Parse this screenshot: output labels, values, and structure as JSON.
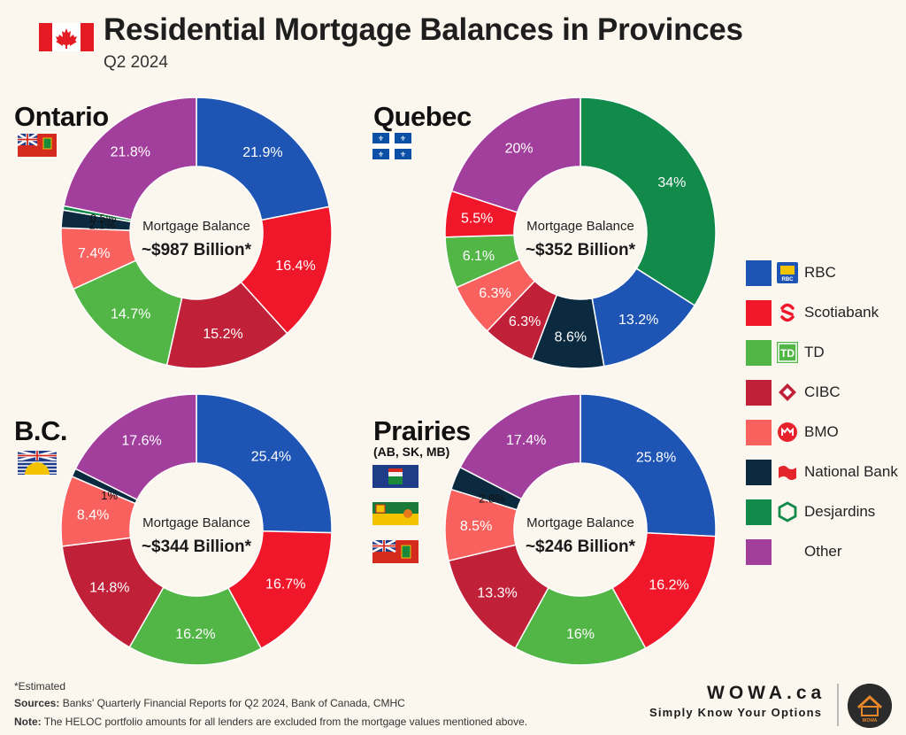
{
  "header": {
    "title": "Residential Mortgage Balances in Provinces",
    "subtitle": "Q2 2024"
  },
  "center_label": "Mortgage Balance",
  "colors": {
    "RBC": "#1e55b4",
    "Scotiabank": "#f0172b",
    "TD": "#52b646",
    "CIBC": "#c12039",
    "BMO": "#f9615e",
    "National Bank": "#0b2a3f",
    "Desjardins": "#118a4a",
    "Other": "#a23f9c"
  },
  "legend": [
    {
      "name": "RBC",
      "icon": "rbc-logo-icon"
    },
    {
      "name": "Scotiabank",
      "icon": "scotiabank-logo-icon"
    },
    {
      "name": "TD",
      "icon": "td-logo-icon"
    },
    {
      "name": "CIBC",
      "icon": "cibc-logo-icon"
    },
    {
      "name": "BMO",
      "icon": "bmo-logo-icon"
    },
    {
      "name": "National Bank",
      "icon": "national-bank-logo-icon"
    },
    {
      "name": "Desjardins",
      "icon": "desjardins-logo-icon"
    },
    {
      "name": "Other",
      "icon": ""
    }
  ],
  "chart_data": [
    {
      "type": "pie",
      "title": "Ontario",
      "total_label": "~$987 Billion*",
      "slices": [
        {
          "name": "RBC",
          "value": 21.9,
          "label": "21.9%"
        },
        {
          "name": "Scotiabank",
          "value": 16.4,
          "label": "16.4%"
        },
        {
          "name": "CIBC",
          "value": 15.2,
          "label": "15.2%"
        },
        {
          "name": "TD",
          "value": 14.7,
          "label": "14.7%"
        },
        {
          "name": "BMO",
          "value": 7.4,
          "label": "7.4%"
        },
        {
          "name": "National Bank",
          "value": 2.1,
          "label": "2.1%"
        },
        {
          "name": "Desjardins",
          "value": 0.5,
          "label": "0.5%"
        },
        {
          "name": "Other",
          "value": 21.8,
          "label": "21.8%"
        }
      ]
    },
    {
      "type": "pie",
      "title": "Quebec",
      "total_label": "~$352 Billion*",
      "slices": [
        {
          "name": "Desjardins",
          "value": 34,
          "label": "34%"
        },
        {
          "name": "RBC",
          "value": 13.2,
          "label": "13.2%"
        },
        {
          "name": "National Bank",
          "value": 8.6,
          "label": "8.6%"
        },
        {
          "name": "CIBC",
          "value": 6.3,
          "label": "6.3%"
        },
        {
          "name": "BMO",
          "value": 6.3,
          "label": "6.3%"
        },
        {
          "name": "TD",
          "value": 6.1,
          "label": "6.1%"
        },
        {
          "name": "Scotiabank",
          "value": 5.5,
          "label": "5.5%"
        },
        {
          "name": "Other",
          "value": 20,
          "label": "20%"
        }
      ]
    },
    {
      "type": "pie",
      "title": "B.C.",
      "total_label": "~$344 Billion*",
      "slices": [
        {
          "name": "RBC",
          "value": 25.4,
          "label": "25.4%"
        },
        {
          "name": "Scotiabank",
          "value": 16.7,
          "label": "16.7%"
        },
        {
          "name": "TD",
          "value": 16.2,
          "label": "16.2%"
        },
        {
          "name": "CIBC",
          "value": 14.8,
          "label": "14.8%"
        },
        {
          "name": "BMO",
          "value": 8.4,
          "label": "8.4%"
        },
        {
          "name": "National Bank",
          "value": 1,
          "label": "1%"
        },
        {
          "name": "Other",
          "value": 17.6,
          "label": "17.6%"
        }
      ]
    },
    {
      "type": "pie",
      "title": "Prairies",
      "subtitle": "(AB, SK, MB)",
      "total_label": "~$246 Billion*",
      "slices": [
        {
          "name": "RBC",
          "value": 25.8,
          "label": "25.8%"
        },
        {
          "name": "Scotiabank",
          "value": 16.2,
          "label": "16.2%"
        },
        {
          "name": "TD",
          "value": 16,
          "label": "16%"
        },
        {
          "name": "CIBC",
          "value": 13.3,
          "label": "13.3%"
        },
        {
          "name": "BMO",
          "value": 8.5,
          "label": "8.5%"
        },
        {
          "name": "National Bank",
          "value": 2.8,
          "label": "2.8%"
        },
        {
          "name": "Other",
          "value": 17.4,
          "label": "17.4%"
        }
      ]
    }
  ],
  "footer": {
    "estimated": "*Estimated",
    "sources_label": "Sources:",
    "sources_text": " Banks' Quarterly Financial Reports for Q2 2024, Bank of Canada, CMHC",
    "note_label": "Note:",
    "note_text": " The HELOC portfolio amounts for all lenders are excluded from the mortgage values mentioned above."
  },
  "brand": {
    "name": "WOWA.ca",
    "tagline": "Simply Know Your Options",
    "logo_text": "WOWA"
  }
}
